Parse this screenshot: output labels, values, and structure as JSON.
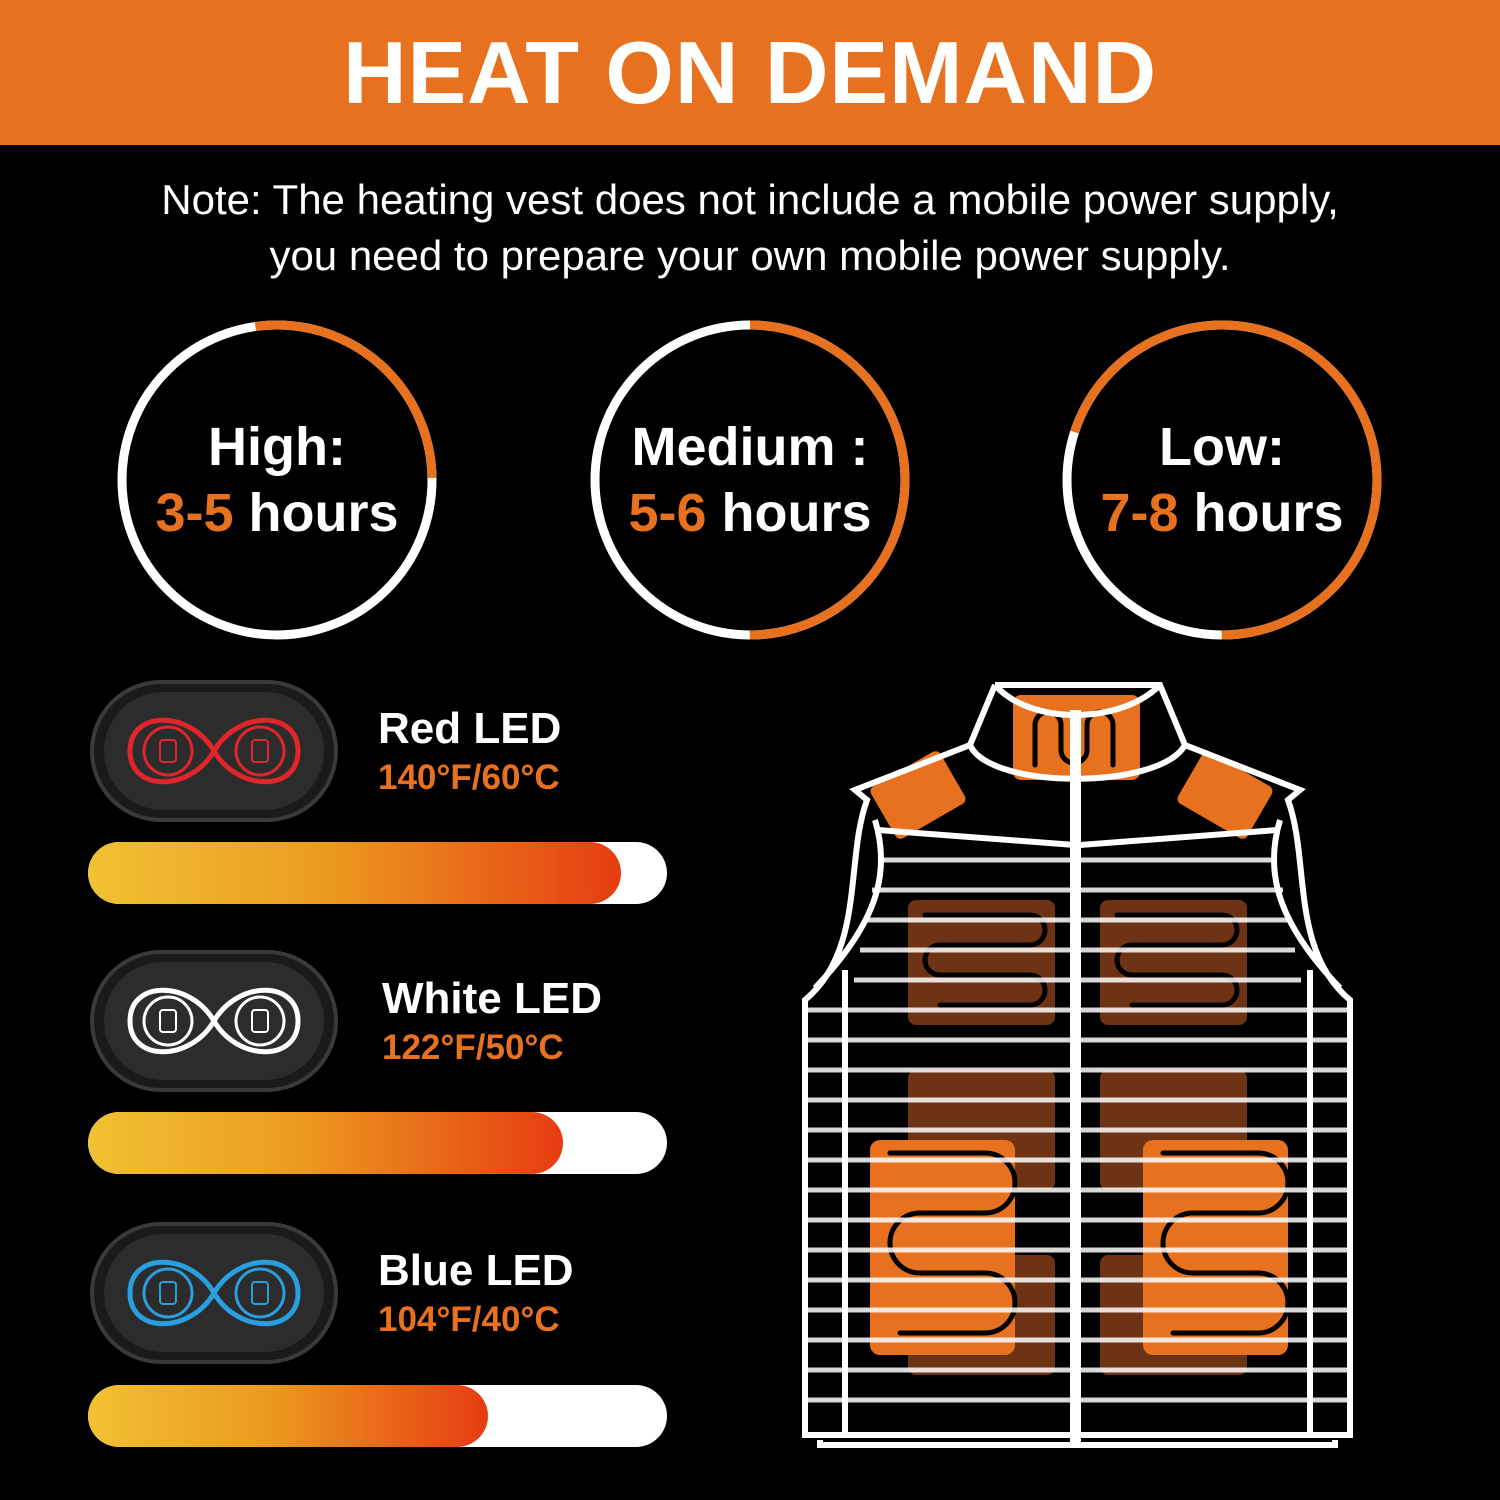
{
  "header": {
    "title": "HEAT ON DEMAND"
  },
  "note": {
    "line1": "Note: The heating vest does not include a mobile power supply,",
    "line2": "you need to prepare your own mobile power supply."
  },
  "modes": [
    {
      "label": "High:",
      "duration": "3-5",
      "unit": " hours",
      "ring_fraction": 0.27
    },
    {
      "label": "Medium :",
      "duration": "5-6",
      "unit": " hours",
      "ring_fraction": 0.5
    },
    {
      "label": "Low:",
      "duration": "7-8",
      "unit": " hours",
      "ring_fraction": 0.7
    }
  ],
  "leds": [
    {
      "label": "Red LED",
      "temp": "140°F/60°C",
      "color": "#e0262a",
      "level": 0.92
    },
    {
      "label": "White LED",
      "temp": "122°F/50°C",
      "color": "#ffffff",
      "level": 0.82
    },
    {
      "label": "Blue LED",
      "temp": "104°F/40°C",
      "color": "#2a9fe0",
      "level": 0.69
    }
  ],
  "colors": {
    "accent": "#e8711f",
    "background": "#000000"
  }
}
